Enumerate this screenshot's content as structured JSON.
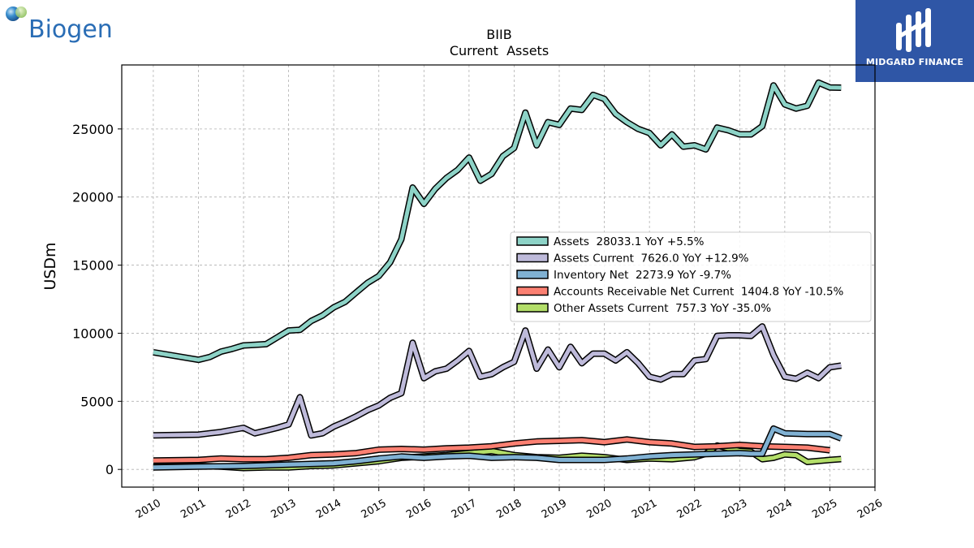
{
  "branding": {
    "left_logo_text": "Biogen",
    "right_logo_text": "MIDGARD FINANCE"
  },
  "chart_data": {
    "type": "line",
    "title": "BIIB",
    "subtitle": "Current  Assets",
    "ylabel": "USDm",
    "xlabel": "",
    "xlim": [
      2009.3,
      2026.0
    ],
    "ylim": [
      -1300,
      29700
    ],
    "x_ticks": [
      2010,
      2011,
      2012,
      2013,
      2014,
      2015,
      2016,
      2017,
      2018,
      2019,
      2020,
      2021,
      2022,
      2023,
      2024,
      2025,
      2026
    ],
    "y_ticks": [
      0,
      5000,
      10000,
      15000,
      20000,
      25000
    ],
    "grid": true,
    "legend_position": "center-right",
    "series": [
      {
        "name": "Assets",
        "legend": "Assets  28033.1 YoY +5.5%",
        "color": "#8dd3c7",
        "x": [
          2010.0,
          2011.0,
          2011.25,
          2011.5,
          2011.75,
          2012.0,
          2012.25,
          2012.5,
          2012.75,
          2013.0,
          2013.25,
          2013.5,
          2013.75,
          2014.0,
          2014.25,
          2014.5,
          2014.75,
          2015.0,
          2015.25,
          2015.5,
          2015.75,
          2016.0,
          2016.25,
          2016.5,
          2016.75,
          2017.0,
          2017.25,
          2017.5,
          2017.75,
          2018.0,
          2018.25,
          2018.5,
          2018.75,
          2019.0,
          2019.25,
          2019.5,
          2019.75,
          2020.0,
          2020.25,
          2020.5,
          2020.75,
          2021.0,
          2021.25,
          2021.5,
          2021.75,
          2022.0,
          2022.25,
          2022.5,
          2022.75,
          2023.0,
          2023.25,
          2023.5,
          2023.75,
          2024.0,
          2024.25,
          2024.5,
          2024.75,
          2025.0,
          2025.25
        ],
        "y": [
          8600,
          8050,
          8250,
          8650,
          8850,
          9100,
          9150,
          9200,
          9700,
          10200,
          10250,
          10900,
          11300,
          11900,
          12300,
          13000,
          13700,
          14200,
          15200,
          16900,
          20700,
          19500,
          20600,
          21400,
          22000,
          22900,
          21200,
          21700,
          23000,
          23600,
          26200,
          23800,
          25500,
          25300,
          26500,
          26400,
          27500,
          27200,
          26100,
          25500,
          25000,
          24700,
          23800,
          24600,
          23700,
          23800,
          23500,
          25100,
          24900,
          24600,
          24600,
          25200,
          28200,
          26800,
          26500,
          26700,
          28400,
          28050,
          28033
        ]
      },
      {
        "name": "Assets Current",
        "legend": "Assets Current  7626.0 YoY +12.9%",
        "color": "#bebada",
        "x": [
          2010.0,
          2011.0,
          2011.25,
          2011.5,
          2011.75,
          2012.0,
          2012.25,
          2012.5,
          2012.75,
          2013.0,
          2013.25,
          2013.5,
          2013.75,
          2014.0,
          2014.25,
          2014.5,
          2014.75,
          2015.0,
          2015.25,
          2015.5,
          2015.75,
          2016.0,
          2016.25,
          2016.5,
          2016.75,
          2017.0,
          2017.25,
          2017.5,
          2017.75,
          2018.0,
          2018.25,
          2018.5,
          2018.75,
          2019.0,
          2019.25,
          2019.5,
          2019.75,
          2020.0,
          2020.25,
          2020.5,
          2020.75,
          2021.0,
          2021.25,
          2021.5,
          2021.75,
          2022.0,
          2022.25,
          2022.5,
          2022.75,
          2023.0,
          2023.25,
          2023.5,
          2023.75,
          2024.0,
          2024.25,
          2024.5,
          2024.75,
          2025.0,
          2025.25
        ],
        "y": [
          2500,
          2550,
          2650,
          2750,
          2900,
          3050,
          2650,
          2850,
          3050,
          3300,
          5300,
          2500,
          2650,
          3150,
          3500,
          3900,
          4350,
          4700,
          5250,
          5600,
          9300,
          6700,
          7200,
          7400,
          8000,
          8700,
          6800,
          7000,
          7500,
          7900,
          10200,
          7400,
          8800,
          7500,
          9000,
          7800,
          8500,
          8500,
          8000,
          8600,
          7800,
          6800,
          6600,
          7000,
          7000,
          8000,
          8100,
          9800,
          9850,
          9850,
          9800,
          10500,
          8400,
          6800,
          6650,
          7100,
          6700,
          7500,
          7626
        ]
      },
      {
        "name": "Inventory Net",
        "legend": "Inventory Net  2273.9 YoY -9.7%",
        "color": "#80b1d3",
        "x": [
          2010.0,
          2011.0,
          2012.0,
          2013.0,
          2014.0,
          2014.5,
          2015.0,
          2015.5,
          2016.0,
          2016.5,
          2017.0,
          2017.5,
          2018.0,
          2018.5,
          2019.0,
          2019.5,
          2020.0,
          2020.5,
          2021.0,
          2021.5,
          2022.0,
          2022.5,
          2023.0,
          2023.25,
          2023.5,
          2023.75,
          2024.0,
          2024.5,
          2025.0,
          2025.25
        ],
        "y": [
          150,
          200,
          250,
          350,
          450,
          600,
          800,
          950,
          850,
          950,
          1000,
          850,
          900,
          850,
          700,
          700,
          700,
          800,
          950,
          1050,
          1100,
          1150,
          1200,
          1150,
          1150,
          3000,
          2650,
          2600,
          2600,
          2274
        ]
      },
      {
        "name": "Accounts Receivable Net Current",
        "legend": "Accounts Receivable Net Current  1404.8 YoY -10.5%",
        "color": "#fb8072",
        "x": [
          2010.0,
          2011.0,
          2011.5,
          2012.0,
          2012.5,
          2013.0,
          2013.5,
          2014.0,
          2014.5,
          2015.0,
          2015.5,
          2016.0,
          2016.5,
          2017.0,
          2017.5,
          2018.0,
          2018.5,
          2019.0,
          2019.5,
          2020.0,
          2020.5,
          2021.0,
          2021.5,
          2022.0,
          2022.5,
          2023.0,
          2023.5,
          2024.0,
          2024.5,
          2025.0
        ],
        "y": [
          650,
          700,
          800,
          750,
          750,
          850,
          1050,
          1100,
          1200,
          1450,
          1500,
          1450,
          1550,
          1600,
          1700,
          1900,
          2050,
          2100,
          2150,
          2000,
          2200,
          2000,
          1900,
          1650,
          1700,
          1800,
          1700,
          1650,
          1600,
          1405
        ]
      },
      {
        "name": "Other Assets Current",
        "legend": "Other Assets Current  757.3 YoY -35.0%",
        "color": "#b3de69",
        "x": [
          2010.0,
          2011.0,
          2011.5,
          2012.0,
          2012.5,
          2013.0,
          2013.5,
          2014.0,
          2014.5,
          2015.0,
          2015.5,
          2016.0,
          2016.5,
          2017.0,
          2017.5,
          2018.0,
          2018.5,
          2019.0,
          2019.5,
          2020.0,
          2020.5,
          2021.0,
          2021.5,
          2022.0,
          2022.25,
          2022.5,
          2023.0,
          2023.25,
          2023.5,
          2023.75,
          2024.0,
          2024.25,
          2024.5,
          2025.0,
          2025.25
        ],
        "y": [
          200,
          250,
          200,
          100,
          150,
          150,
          250,
          300,
          450,
          600,
          850,
          950,
          1050,
          1200,
          1350,
          1050,
          900,
          850,
          1000,
          900,
          700,
          800,
          750,
          900,
          1150,
          1750,
          1350,
          1300,
          750,
          850,
          1100,
          1050,
          550,
          700,
          757
        ]
      }
    ]
  }
}
